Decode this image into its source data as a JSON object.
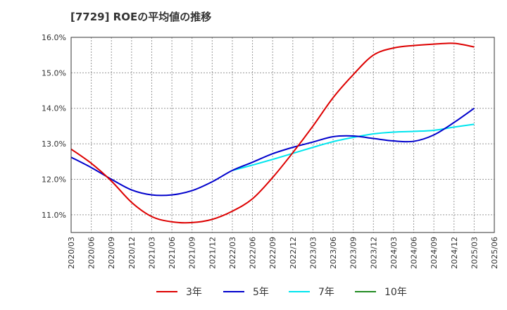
{
  "chart_data": {
    "type": "line",
    "title": "[7729]  ROEの平均値の推移",
    "xlabel": "",
    "ylabel": "",
    "ylim": [
      10.5,
      16.0
    ],
    "yticks": [
      11.0,
      12.0,
      13.0,
      14.0,
      15.0,
      16.0
    ],
    "ytick_labels": [
      "11.0%",
      "12.0%",
      "13.0%",
      "14.0%",
      "15.0%",
      "16.0%"
    ],
    "grid": true,
    "legend_position": "bottom",
    "categories": [
      "2020/03",
      "2020/06",
      "2020/09",
      "2020/12",
      "2021/03",
      "2021/06",
      "2021/09",
      "2021/12",
      "2022/03",
      "2022/06",
      "2022/09",
      "2022/12",
      "2023/03",
      "2023/06",
      "2023/09",
      "2023/12",
      "2024/03",
      "2024/06",
      "2024/09",
      "2024/12",
      "2025/03",
      "2025/06"
    ],
    "series": [
      {
        "name": "3年",
        "color": "#dd0000",
        "values": [
          12.85,
          12.45,
          11.95,
          11.35,
          10.95,
          10.8,
          10.78,
          10.87,
          11.1,
          11.45,
          12.05,
          12.75,
          13.5,
          14.3,
          14.95,
          15.5,
          15.7,
          15.77,
          15.81,
          15.83,
          15.73,
          null
        ]
      },
      {
        "name": "5年",
        "color": "#0000cc",
        "values": [
          12.62,
          12.33,
          12.0,
          11.7,
          11.56,
          11.56,
          11.68,
          11.93,
          12.25,
          12.48,
          12.72,
          12.9,
          13.05,
          13.2,
          13.22,
          13.15,
          13.08,
          13.07,
          13.25,
          13.6,
          14.0,
          null
        ]
      },
      {
        "name": "7年",
        "color": "#00e5ee",
        "values": [
          null,
          null,
          null,
          null,
          null,
          null,
          null,
          null,
          12.25,
          12.4,
          12.56,
          12.73,
          12.9,
          13.06,
          13.18,
          13.28,
          13.33,
          13.35,
          13.38,
          13.47,
          13.55,
          null
        ]
      },
      {
        "name": "10年",
        "color": "#228b22",
        "values": [
          null,
          null,
          null,
          null,
          null,
          null,
          null,
          null,
          null,
          null,
          null,
          null,
          null,
          null,
          null,
          null,
          null,
          null,
          null,
          null,
          null,
          null
        ]
      }
    ]
  }
}
